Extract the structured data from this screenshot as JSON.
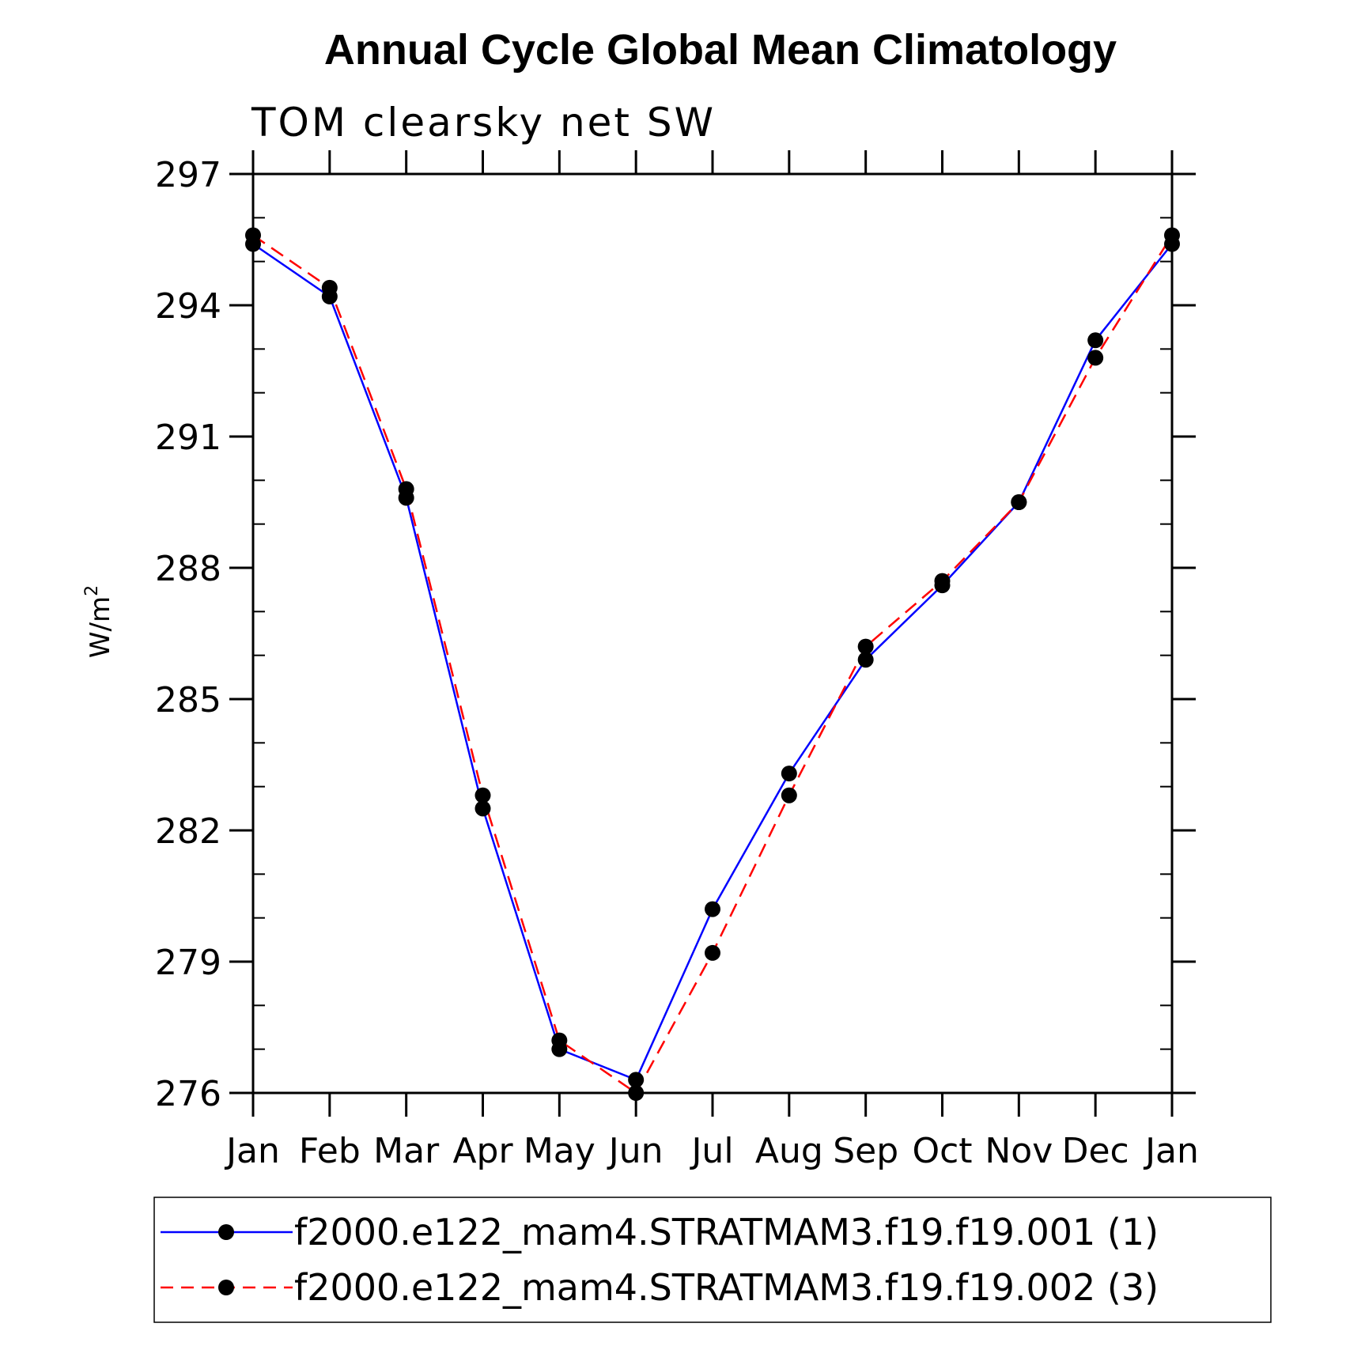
{
  "chart_data": {
    "type": "line",
    "title": "Annual Cycle Global Mean Climatology",
    "subtitle": "TOM clearsky net SW",
    "xlabel": "",
    "ylabel": "W/m",
    "ylabel_superscript": "2",
    "categories": [
      "Jan",
      "Feb",
      "Mar",
      "Apr",
      "May",
      "Jun",
      "Jul",
      "Aug",
      "Sep",
      "Oct",
      "Nov",
      "Dec",
      "Jan"
    ],
    "ylim": [
      276,
      297
    ],
    "yticks": [
      276,
      279,
      282,
      285,
      288,
      291,
      294,
      297
    ],
    "ytick_labels": [
      "276",
      "279",
      "282",
      "285",
      "288",
      "291",
      "294",
      "297"
    ],
    "grid": false,
    "legend_position": "bottom",
    "series": [
      {
        "name": "f2000.e122_mam4.STRATMAM3.f19.f19.001 (1)",
        "color": "#0000ff",
        "line_style": "solid",
        "marker": "filled-circle",
        "values": [
          295.4,
          294.2,
          289.6,
          282.5,
          277.0,
          276.3,
          280.2,
          283.3,
          285.9,
          287.6,
          289.5,
          293.2,
          295.4
        ]
      },
      {
        "name": "f2000.e122_mam4.STRATMAM3.f19.f19.002 (3)",
        "color": "#ff0000",
        "line_style": "dashed",
        "marker": "filled-circle",
        "values": [
          295.6,
          294.4,
          289.8,
          282.8,
          277.2,
          276.0,
          279.2,
          282.8,
          286.2,
          287.7,
          289.5,
          292.8,
          295.6
        ]
      }
    ]
  }
}
